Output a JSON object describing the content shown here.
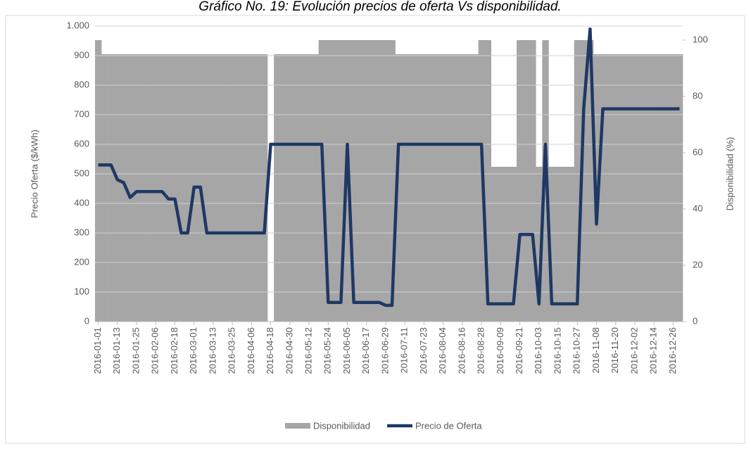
{
  "chart_data": {
    "type": "bar-line",
    "title": "Gráfico No. 19: Evolución precios de oferta Vs disponibilidad.",
    "y_label": "Precio Oferta ($/kWh)",
    "y2_label": "Disponibilidad (%)",
    "categories": [
      "2016-01-01",
      null,
      null,
      "2016-01-13",
      null,
      null,
      "2016-01-25",
      null,
      null,
      "2016-02-06",
      null,
      null,
      "2016-02-18",
      null,
      null,
      "2016-03-01",
      null,
      null,
      "2016-03-13",
      null,
      null,
      "2016-03-25",
      null,
      null,
      "2016-04-06",
      null,
      null,
      "2016-04-18",
      null,
      null,
      "2016-04-30",
      null,
      null,
      "2016-05-12",
      null,
      null,
      "2016-05-24",
      null,
      null,
      "2016-06-05",
      null,
      null,
      "2016-06-17",
      null,
      null,
      "2016-06-29",
      null,
      null,
      "2016-07-11",
      null,
      null,
      "2016-07-23",
      null,
      null,
      "2016-08-04",
      null,
      null,
      "2016-08-16",
      null,
      null,
      "2016-08-28",
      null,
      null,
      "2016-09-09",
      null,
      null,
      "2016-09-21",
      null,
      null,
      "2016-10-03",
      null,
      null,
      "2016-10-15",
      null,
      null,
      "2016-10-27",
      null,
      null,
      "2016-11-08",
      null,
      null,
      "2016-11-20",
      null,
      null,
      "2016-12-02",
      null,
      null,
      "2016-12-14",
      null,
      null,
      "2016-12-26",
      null
    ],
    "series": [
      {
        "name": "Disponibilidad",
        "kind": "bar",
        "axis": "y2",
        "color": "#a6a6a6",
        "values": [
          100,
          95,
          95,
          95,
          95,
          95,
          95,
          95,
          95,
          95,
          95,
          95,
          95,
          95,
          95,
          95,
          95,
          95,
          95,
          95,
          95,
          95,
          95,
          95,
          95,
          95,
          95,
          0,
          95,
          95,
          95,
          95,
          95,
          95,
          95,
          100,
          100,
          100,
          100,
          100,
          100,
          100,
          100,
          100,
          100,
          100,
          100,
          95,
          95,
          95,
          95,
          95,
          95,
          95,
          95,
          95,
          95,
          95,
          95,
          95,
          100,
          100,
          55,
          55,
          55,
          55,
          100,
          100,
          100,
          55,
          100,
          55,
          55,
          55,
          55,
          100,
          100,
          100,
          95,
          95,
          95,
          95,
          95,
          95,
          95,
          95,
          95,
          95,
          95,
          95,
          95,
          95
        ]
      },
      {
        "name": "Precio de Oferta",
        "kind": "line",
        "color": "#1f3864",
        "values": [
          530,
          530,
          530,
          480,
          470,
          420,
          440,
          440,
          440,
          440,
          440,
          415,
          415,
          300,
          300,
          455,
          455,
          300,
          300,
          300,
          300,
          300,
          300,
          300,
          300,
          300,
          300,
          600,
          600,
          600,
          600,
          600,
          600,
          600,
          600,
          600,
          65,
          65,
          65,
          600,
          65,
          65,
          65,
          65,
          65,
          55,
          55,
          600,
          600,
          600,
          600,
          600,
          600,
          600,
          600,
          600,
          600,
          600,
          600,
          600,
          600,
          60,
          60,
          60,
          60,
          60,
          295,
          295,
          295,
          60,
          600,
          60,
          60,
          60,
          60,
          60,
          720,
          990,
          330,
          720,
          720,
          720,
          720,
          720,
          720,
          720,
          720,
          720,
          720,
          720,
          720,
          720
        ]
      }
    ],
    "ylim": [
      0,
      1000
    ],
    "yticks": [
      0,
      100,
      200,
      300,
      400,
      500,
      600,
      700,
      800,
      900,
      {
        "value": 1000,
        "label": "1.000"
      }
    ],
    "y2lim": [
      0,
      105
    ],
    "y2ticks": [
      0,
      20,
      40,
      60,
      80,
      100
    ],
    "grid": true
  }
}
